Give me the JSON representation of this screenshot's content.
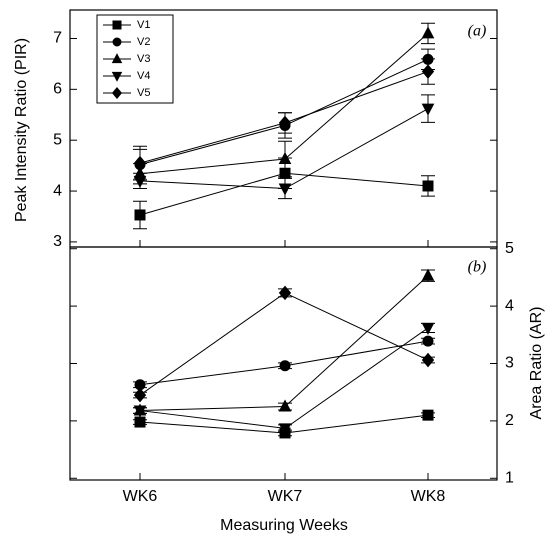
{
  "chart_data": [
    {
      "type": "line",
      "panel_label": "(a)",
      "y_label": "Peak Intensity Ratio (PIR)",
      "ylim": [
        2.9,
        7.56
      ],
      "yticks": [
        3,
        4,
        5,
        6,
        7
      ],
      "legend": "upper-left",
      "series": [
        {
          "name": "V1",
          "color": "#000000",
          "marker": "square",
          "values": [
            3.53,
            4.35,
            4.1
          ],
          "errors": [
            0.27,
            0.3,
            0.2
          ]
        },
        {
          "name": "V2",
          "color": "#000000",
          "marker": "circle",
          "values": [
            4.52,
            5.29,
            6.59
          ],
          "errors": [
            0.3,
            0.25,
            0.2
          ]
        },
        {
          "name": "V3",
          "color": "#000000",
          "marker": "triangle-up",
          "values": [
            4.34,
            4.63,
            7.1
          ],
          "errors": [
            0.2,
            0.35,
            0.2
          ]
        },
        {
          "name": "V4",
          "color": "#000000",
          "marker": "triangle-down",
          "values": [
            4.2,
            4.05,
            5.62
          ],
          "errors": [
            0.15,
            0.2,
            0.27
          ]
        },
        {
          "name": "V5",
          "color": "#000000",
          "marker": "diamond",
          "values": [
            4.55,
            5.34,
            6.35
          ],
          "errors": [
            0.33,
            0.2,
            0.25
          ]
        }
      ]
    },
    {
      "type": "line",
      "panel_label": "(b)",
      "y_label": "Area Ratio (AR)",
      "x_label": "Measuring Weeks",
      "categories": [
        "WK6",
        "WK7",
        "WK8"
      ],
      "ylim": [
        0.97,
        5.03
      ],
      "yticks": [
        1,
        2,
        3,
        4,
        5
      ],
      "series": [
        {
          "color": "#000000",
          "marker": "square",
          "values": [
            1.98,
            1.79,
            2.1
          ],
          "errors": [
            0.04,
            0.05,
            0.04
          ]
        },
        {
          "color": "#000000",
          "marker": "circle",
          "values": [
            2.63,
            2.96,
            3.39
          ],
          "errors": [
            0.05,
            0.05,
            0.05
          ]
        },
        {
          "color": "#000000",
          "marker": "triangle-up",
          "values": [
            2.18,
            2.25,
            4.53
          ],
          "errors": [
            0.05,
            0.06,
            0.1
          ]
        },
        {
          "color": "#000000",
          "marker": "triangle-down",
          "values": [
            2.18,
            1.87,
            3.62
          ],
          "errors": [
            0.05,
            0.06,
            0.08
          ]
        },
        {
          "color": "#000000",
          "marker": "diamond",
          "values": [
            2.45,
            4.23,
            3.06
          ],
          "errors": [
            0.05,
            0.07,
            0.05
          ]
        }
      ]
    }
  ]
}
